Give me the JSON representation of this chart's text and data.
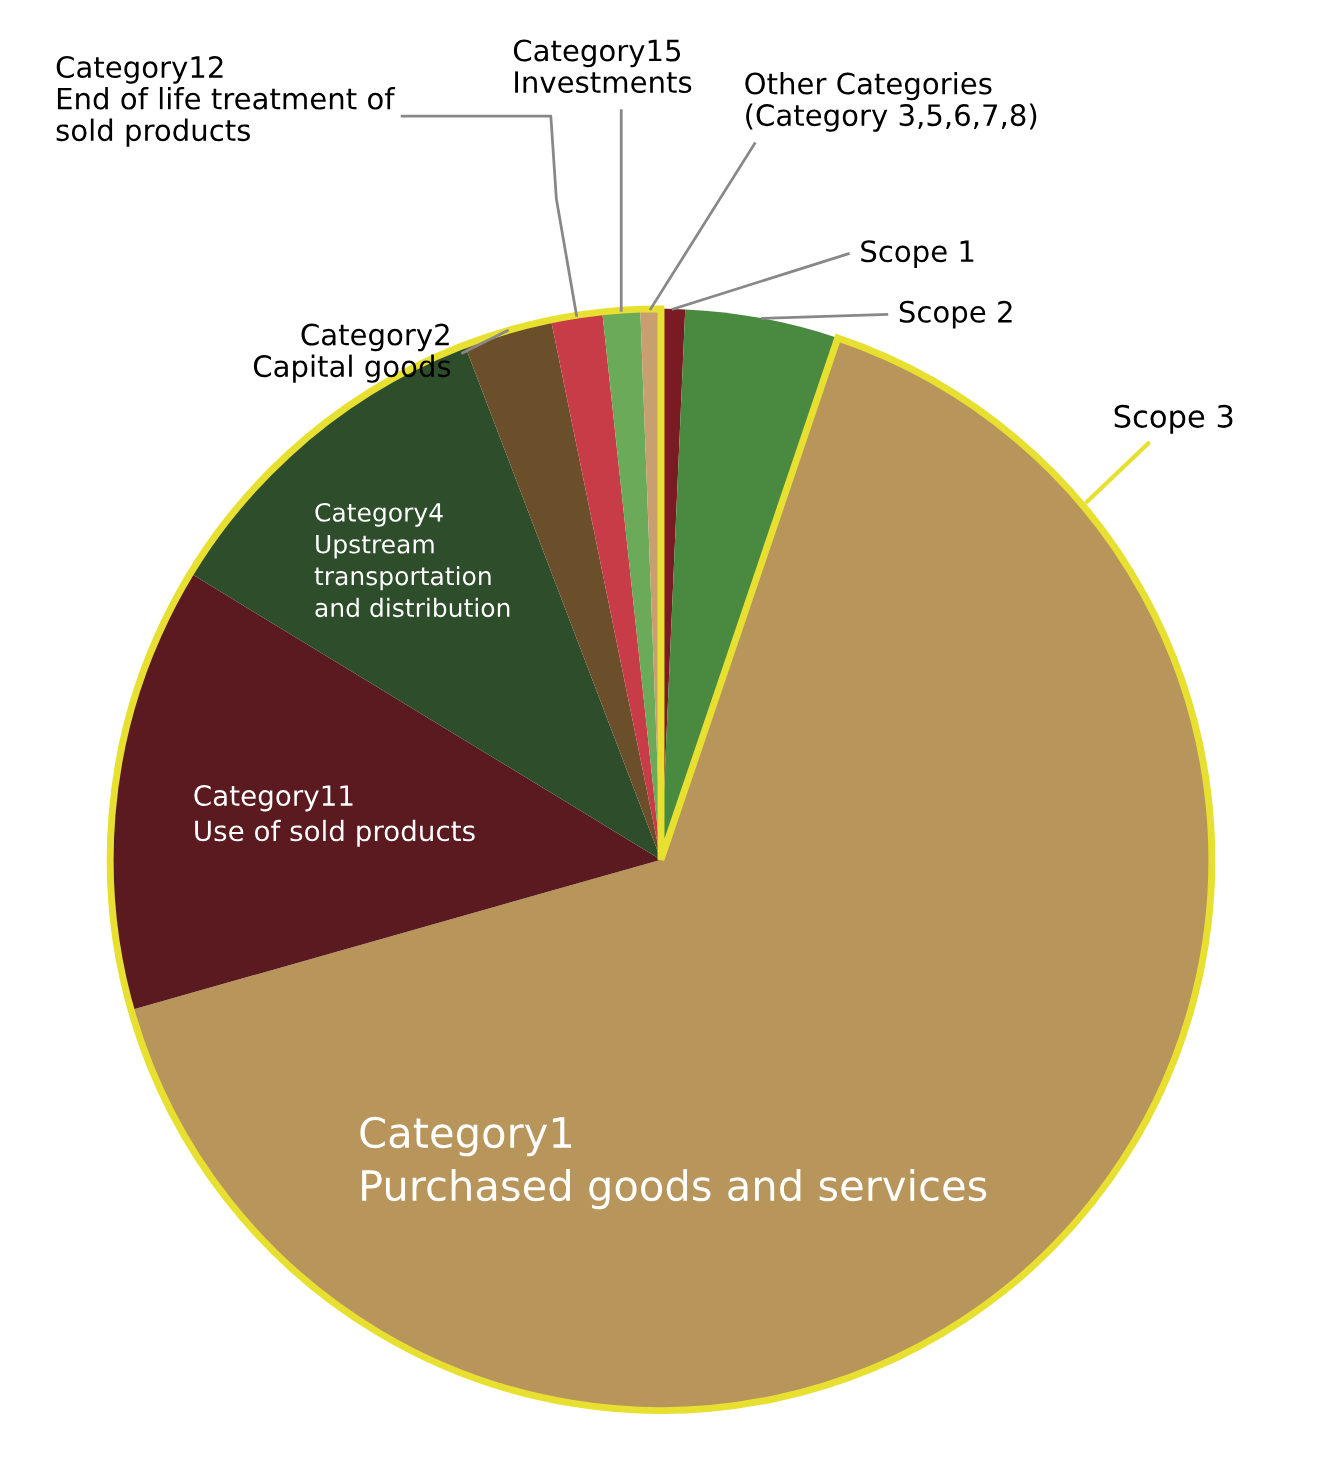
{
  "chart_data": {
    "type": "pie",
    "categories": [
      "Scope 1",
      "Scope 2",
      "Category1\nPurchased goods and services",
      "Category11\nUse of sold products",
      "Category4\nUpstream\ntransportation\nand distribution",
      "Category2\nCapital goods",
      "Category12\nEnd of life treatment of\nsold products",
      "Category15\nInvestments",
      "Other Categories\n(Category 3,5,6,7,8)"
    ],
    "values": [
      0.7,
      4.5,
      65.4,
      13.1,
      10.5,
      2.6,
      1.5,
      1.1,
      0.6
    ],
    "colors": [
      "#7a1a22",
      "#4a8a40",
      "#b8955a",
      "#5a1a20",
      "#2e4d2a",
      "#6b4e2a",
      "#c83c48",
      "#6aaa58",
      "#c8a070"
    ],
    "annotations": [
      "Scope 3"
    ],
    "legend": false
  }
}
